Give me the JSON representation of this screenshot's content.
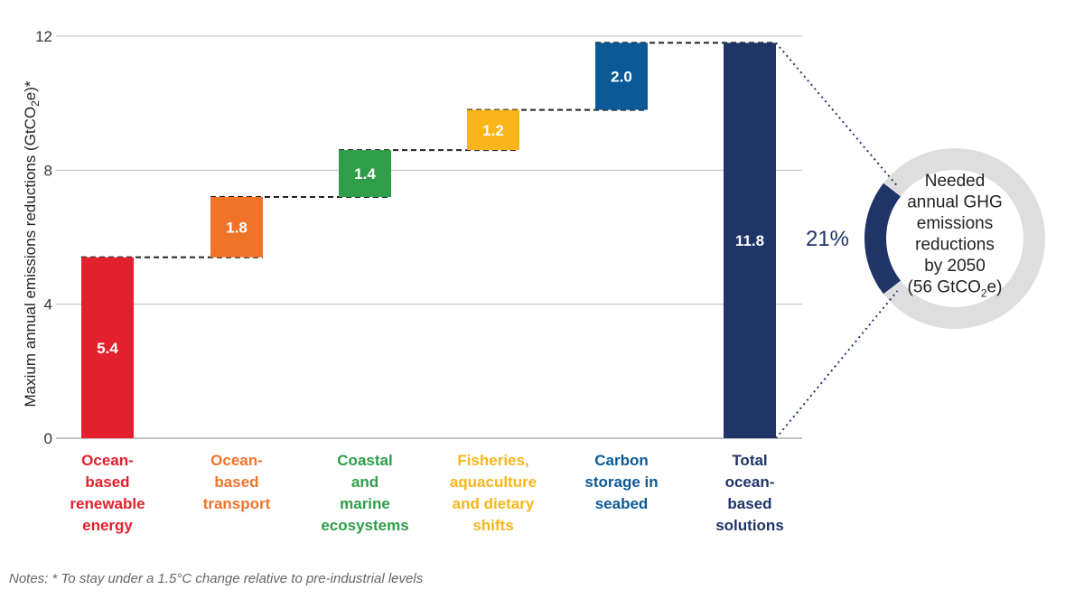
{
  "chart_data": {
    "type": "waterfall",
    "title": "",
    "ylabel_main": "Maxium annual emissions reductions (GtCO",
    "ylabel_sub": "2",
    "ylabel_tail": "e)*",
    "ylim": [
      0,
      12
    ],
    "yticks": [
      0,
      4,
      8,
      12
    ],
    "grid": true,
    "steps": [
      {
        "name": "Ocean-based renewable energy",
        "label_lines": [
          "Ocean-",
          "based",
          "renewable",
          "energy"
        ],
        "value": 5.4,
        "value_label": "5.4",
        "color": "#E3202D"
      },
      {
        "name": "Ocean-based transport",
        "label_lines": [
          "Ocean-",
          "based",
          "transport"
        ],
        "value": 1.8,
        "value_label": "1.8",
        "color": "#F0732A"
      },
      {
        "name": "Coastal and marine ecosystems",
        "label_lines": [
          "Coastal",
          "and",
          "marine",
          "ecosystems"
        ],
        "value": 1.4,
        "value_label": "1.4",
        "color": "#2E9E48"
      },
      {
        "name": "Fisheries, aquaculture and dietary shifts",
        "label_lines": [
          "Fisheries,",
          "aquaculture",
          "and dietary",
          "shifts"
        ],
        "value": 1.2,
        "value_label": "1.2",
        "color": "#F9B51A"
      },
      {
        "name": "Carbon storage in seabed",
        "label_lines": [
          "Carbon",
          "storage in",
          "seabed"
        ],
        "value": 2.0,
        "value_label": "2.0",
        "color": "#0B5A97"
      }
    ],
    "total": {
      "name": "Total ocean-based solutions",
      "label_lines": [
        "Total",
        "ocean-",
        "based",
        "solutions"
      ],
      "value": 11.8,
      "value_label": "11.8",
      "color": "#1F3467"
    },
    "callout": {
      "percent": 21,
      "percent_label": "21%",
      "text_lines": [
        "Needed",
        "annual GHG",
        "emissions",
        "reductions",
        "by 2050"
      ],
      "last_line_main": "(56 GtCO",
      "last_line_sub": "2",
      "last_line_tail": "e)",
      "ring_color": "#DEDEDF",
      "arc_color": "#1F3467"
    }
  },
  "notes": "Notes: * To stay under a 1.5°C change relative to pre-industrial levels"
}
